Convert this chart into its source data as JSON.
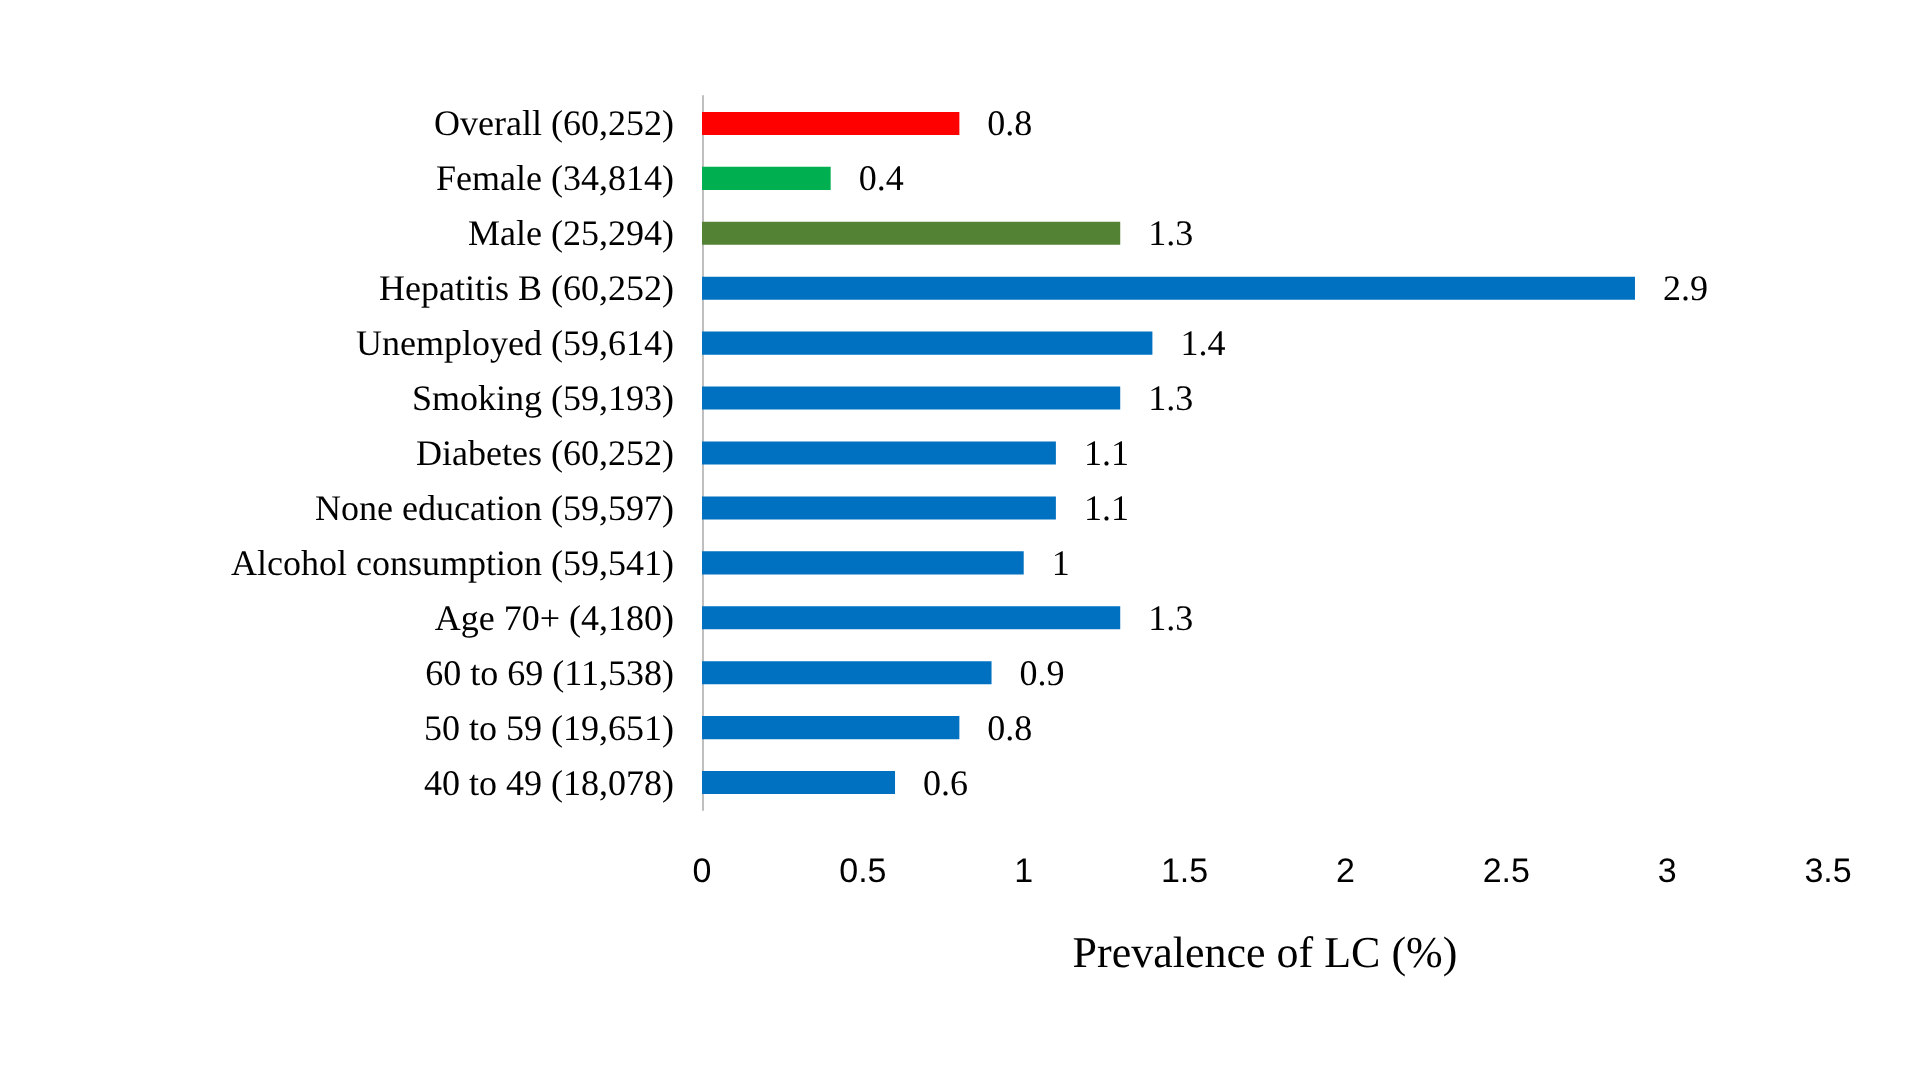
{
  "chart_data": {
    "type": "bar",
    "orientation": "horizontal",
    "xlabel": "Prevalence of LC (%)",
    "categories": [
      "Overall (60,252)",
      "Female (34,814)",
      "Male (25,294)",
      "Hepatitis B (60,252)",
      "Unemployed (59,614)",
      "Smoking (59,193)",
      "Diabetes (60,252)",
      "None education (59,597)",
      "Alcohol consumption (59,541)",
      "Age 70+ (4,180)",
      "60 to 69 (11,538)",
      "50 to 59 (19,651)",
      "40 to 49 (18,078)"
    ],
    "values": [
      0.8,
      0.4,
      1.3,
      2.9,
      1.4,
      1.3,
      1.1,
      1.1,
      1,
      1.3,
      0.9,
      0.8,
      0.6
    ],
    "colors": [
      "#ff0000",
      "#00b050",
      "#548235",
      "#0070c0",
      "#0070c0",
      "#0070c0",
      "#0070c0",
      "#0070c0",
      "#0070c0",
      "#0070c0",
      "#0070c0",
      "#0070c0",
      "#0070c0"
    ],
    "xlim": [
      0,
      3.5
    ],
    "xticks": [
      0,
      0.5,
      1,
      1.5,
      2,
      2.5,
      3,
      3.5
    ],
    "data_labels": true
  }
}
